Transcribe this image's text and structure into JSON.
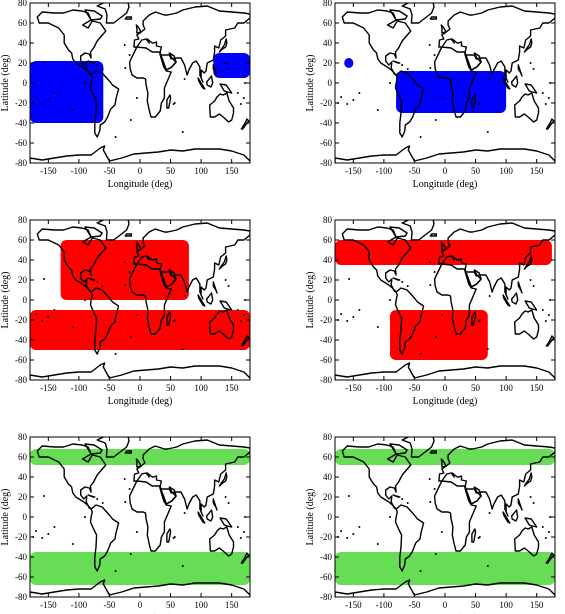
{
  "figure": {
    "xlabel": "Longitude (deg)",
    "ylabel": "Latitude (deg)",
    "xticks": [
      -150,
      -100,
      -50,
      0,
      50,
      100,
      150
    ],
    "yticks": [
      -80,
      -60,
      -40,
      -20,
      0,
      20,
      40,
      60,
      80
    ],
    "xlim": [
      -180,
      180
    ],
    "ylim": [
      -80,
      80
    ],
    "colors": {
      "blue": "#0000ff",
      "red": "#ff0000",
      "green": "#66dd55"
    }
  },
  "chart_data": [
    {
      "type": "map",
      "panel": "row1-left",
      "color": "blue",
      "regions": [
        {
          "lon_min": -180,
          "lon_max": -60,
          "lat_min": -40,
          "lat_max": 22,
          "band": "pacific-to-south-america"
        },
        {
          "lon_min": 120,
          "lon_max": 180,
          "lat_min": 5,
          "lat_max": 30,
          "band": "western-pacific"
        }
      ]
    },
    {
      "type": "map",
      "panel": "row1-right",
      "color": "blue",
      "regions": [
        {
          "lon_min": -165,
          "lon_max": -150,
          "lat_min": 15,
          "lat_max": 25,
          "band": "central-pacific"
        },
        {
          "lon_min": -80,
          "lon_max": 100,
          "lat_min": -30,
          "lat_max": 12,
          "band": "tropical-atlantic-indian"
        }
      ]
    },
    {
      "type": "map",
      "panel": "row2-left",
      "color": "red",
      "regions": [
        {
          "lon_min": -130,
          "lon_max": 80,
          "lat_min": 0,
          "lat_max": 60,
          "band": "north-america-atlantic"
        },
        {
          "lon_min": -180,
          "lon_max": 180,
          "lat_min": -50,
          "lat_max": -10,
          "band": "southern-hemisphere"
        }
      ]
    },
    {
      "type": "map",
      "panel": "row2-right",
      "color": "red",
      "regions": [
        {
          "lon_min": -180,
          "lon_max": 175,
          "lat_min": 35,
          "lat_max": 60,
          "band": "northern-midlatitude"
        },
        {
          "lon_min": -90,
          "lon_max": 70,
          "lat_min": -60,
          "lat_max": -10,
          "band": "south-atlantic"
        }
      ]
    },
    {
      "type": "map",
      "panel": "row3-left",
      "color": "green",
      "regions": [
        {
          "lon_min": -180,
          "lon_max": 180,
          "lat_min": 52,
          "lat_max": 68,
          "band": "northern-subpolar"
        },
        {
          "lon_min": -180,
          "lon_max": 180,
          "lat_min": -68,
          "lat_max": -35,
          "band": "southern-subpolar"
        }
      ]
    },
    {
      "type": "map",
      "panel": "row3-right",
      "color": "green",
      "regions": [
        {
          "lon_min": -180,
          "lon_max": 180,
          "lat_min": 52,
          "lat_max": 68,
          "band": "northern-subpolar"
        },
        {
          "lon_min": -180,
          "lon_max": 180,
          "lat_min": -68,
          "lat_max": -35,
          "band": "southern-subpolar"
        }
      ]
    }
  ]
}
